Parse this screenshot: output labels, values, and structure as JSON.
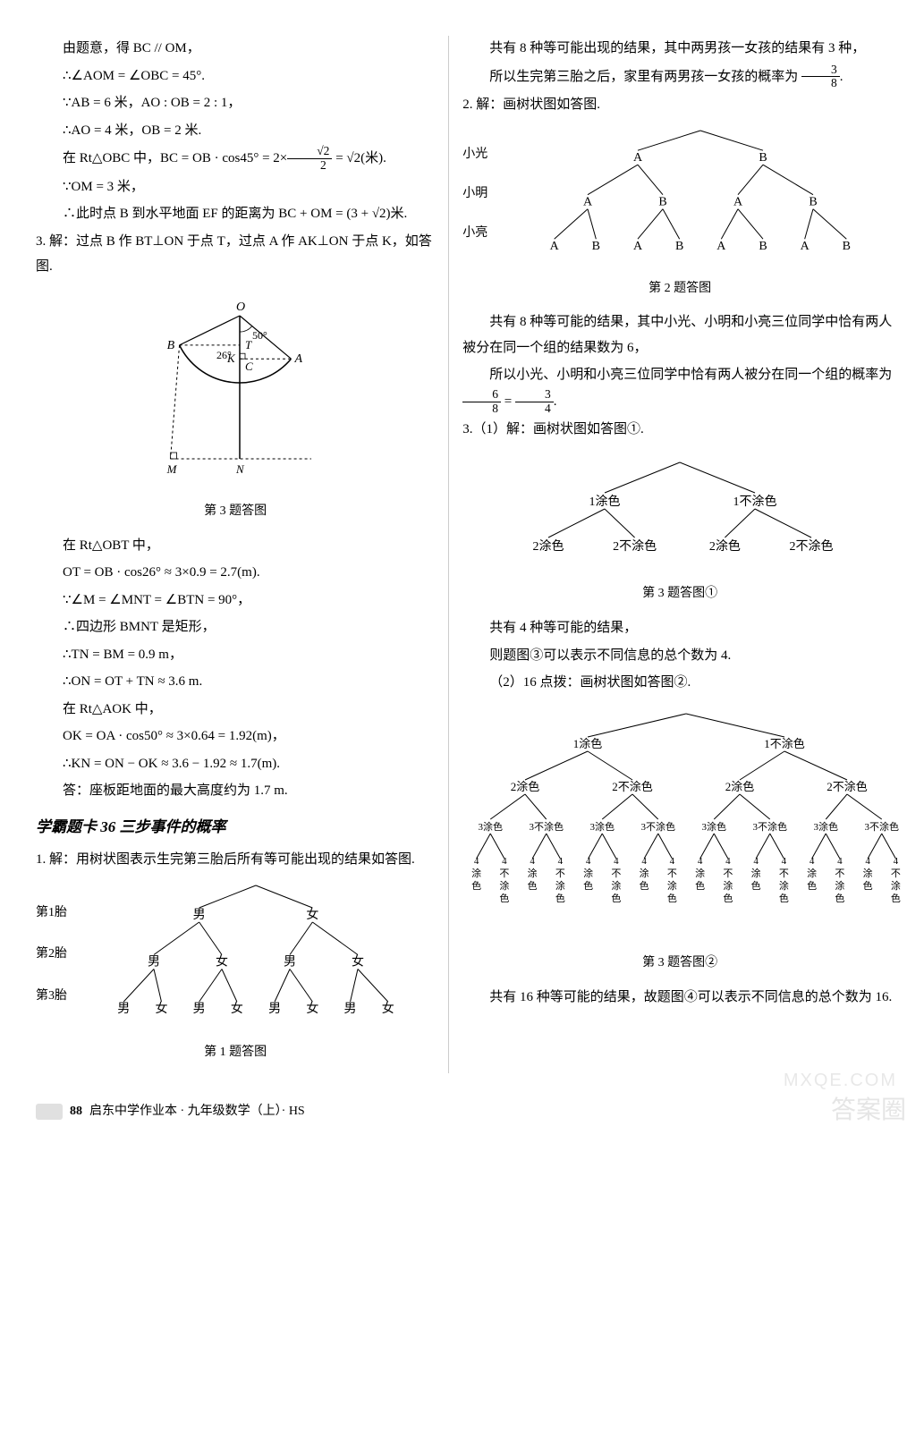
{
  "left": {
    "p1": "由题意，得 BC // OM，",
    "p2": "∴∠AOM = ∠OBC = 45°.",
    "p3": "∵AB = 6 米，AO : OB = 2 : 1，",
    "p4": "∴AO = 4 米，OB = 2 米.",
    "p5_pre": "在 Rt△OBC 中，BC = OB · cos45° = 2×",
    "p5_frac_num": "√2",
    "p5_frac_den": "2",
    "p5_post": " = √2(米).",
    "p6": "∵OM = 3 米，",
    "p7": "∴此时点 B 到水平地面 EF 的距离为 BC + OM = (3 + √2)米.",
    "q3_head": "3. 解：过点 B 作 BT⊥ON 于点 T，过点 A 作 AK⊥ON 于点 K，如答图.",
    "fig3": {
      "label_O": "O",
      "label_A": "A",
      "label_B": "B",
      "label_C": "C",
      "label_K": "K",
      "label_T": "T",
      "label_M": "M",
      "label_N": "N",
      "ang50": "50°",
      "ang26": "26°",
      "caption": "第 3 题答图",
      "radius": 75,
      "theta_OA_deg": -40,
      "theta_OB_deg": 206
    },
    "p8": "在 Rt△OBT 中，",
    "p9": "OT = OB · cos26° ≈ 3×0.9 = 2.7(m).",
    "p10": "∵∠M = ∠MNT = ∠BTN = 90°，",
    "p11": "∴四边形 BMNT 是矩形，",
    "p12": "∴TN = BM = 0.9 m，",
    "p13": "∴ON = OT + TN ≈ 3.6 m.",
    "p14": "在 Rt△AOK 中，",
    "p15": "OK = OA · cos50° ≈ 3×0.64 = 1.92(m)，",
    "p16": "∴KN = ON − OK ≈ 3.6 − 1.92 ≈ 1.7(m).",
    "p17": "答：座板距地面的最大高度约为 1.7 m.",
    "topic": "学霸题卡 36   三步事件的概率",
    "q1": "1. 解：用树状图表示生完第三胎后所有等可能出现的结果如答图.",
    "tree1": {
      "row_labels": [
        "第1胎",
        "第2胎",
        "第3胎"
      ],
      "l1": [
        "男",
        "女"
      ],
      "l2": [
        "男",
        "女",
        "男",
        "女"
      ],
      "l3": [
        "男",
        "女",
        "男",
        "女",
        "男",
        "女",
        "男",
        "女"
      ],
      "caption": "第 1 题答图"
    }
  },
  "right": {
    "p1": "共有 8 种等可能出现的结果，其中两男孩一女孩的结果有 3 种，",
    "p2_pre": "所以生完第三胎之后，家里有两男孩一女孩的概率为 ",
    "p2_frac_num": "3",
    "p2_frac_den": "8",
    "p2_post": ".",
    "q2": "2. 解：画树状图如答图.",
    "tree2": {
      "row_labels": [
        "小光",
        "小明",
        "小亮"
      ],
      "l1": [
        "A",
        "B"
      ],
      "l2": [
        "A",
        "B",
        "A",
        "B"
      ],
      "l3": [
        "A",
        "B",
        "A",
        "B",
        "A",
        "B",
        "A",
        "B"
      ],
      "caption": "第 2 题答图"
    },
    "p3": "共有 8 种等可能的结果，其中小光、小明和小亮三位同学中恰有两人被分在同一个组的结果数为 6，",
    "p4_pre": "所以小光、小明和小亮三位同学中恰有两人被分在同一个组的概率为 ",
    "p4_f1n": "6",
    "p4_f1d": "8",
    "p4_mid": " = ",
    "p4_f2n": "3",
    "p4_f2d": "4",
    "p4_post": ".",
    "q3": "3.（1）解：画树状图如答图①.",
    "tree3a": {
      "l1": [
        "1涂色",
        "1不涂色"
      ],
      "l2": [
        "2涂色",
        "2不涂色",
        "2涂色",
        "2不涂色"
      ],
      "caption": "第 3 题答图①"
    },
    "p5": "共有 4 种等可能的结果，",
    "p6": "则题图③可以表示不同信息的总个数为 4.",
    "p7": "（2）16   点拨：画树状图如答图②.",
    "tree3b": {
      "l1": [
        "1涂色",
        "1不涂色"
      ],
      "l2": [
        "2涂色",
        "2不涂色",
        "2涂色",
        "2不涂色"
      ],
      "l3_pair": [
        "3涂色",
        "3不涂色"
      ],
      "l4_pair": [
        "4\n涂\n色",
        "4\n不\n涂\n色"
      ],
      "caption": "第 3 题答图②"
    },
    "p8": "共有 16 种等可能的结果，故题图④可以表示不同信息的总个数为 16."
  },
  "footer": {
    "page": "88",
    "title": "启东中学作业本 · 九年级数学（上）· HS"
  },
  "watermark_main": "答案圈",
  "watermark_site": "MXQE.COM",
  "colors": {
    "text": "#000000",
    "divider": "#cccccc",
    "watermark": "rgba(180,180,180,0.35)"
  }
}
